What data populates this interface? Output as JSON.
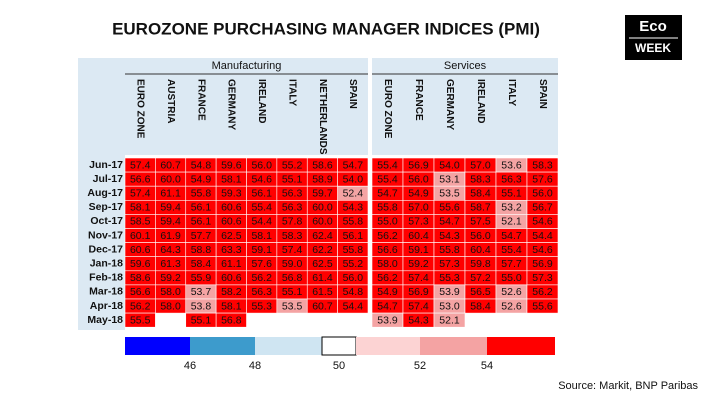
{
  "title": "EUROZONE PURCHASING MANAGER INDICES  (PMI)",
  "logo": [
    "Eco",
    "WEEK"
  ],
  "table": {
    "groups": [
      {
        "name": "Manufacturing",
        "columns": [
          "EURO ZONE",
          "AUSTRIA",
          "FRANCE",
          "GERMANY",
          "IRELAND",
          "ITALY",
          "NETHERLANDS",
          "SPAIN"
        ]
      },
      {
        "name": "Services",
        "columns": [
          "EURO ZONE",
          "FRANCE",
          "GERMANY",
          "IRELAND",
          "ITALY",
          "SPAIN"
        ]
      }
    ],
    "rows": [
      {
        "label": "Jun-17",
        "values": [
          "57.4",
          "60.7",
          "54.8",
          "59.6",
          "56.0",
          "55.2",
          "58.6",
          "54.7",
          "55.4",
          "56.9",
          "54.0",
          "57.0",
          "53.6",
          "58.3"
        ]
      },
      {
        "label": "Jul-17",
        "values": [
          "56.6",
          "60.0",
          "54.9",
          "58.1",
          "54.6",
          "55.1",
          "58.9",
          "54.0",
          "55.4",
          "56.0",
          "53.1",
          "58.3",
          "56.3",
          "57.6"
        ]
      },
      {
        "label": "Aug-17",
        "values": [
          "57.4",
          "61.1",
          "55.8",
          "59.3",
          "56.1",
          "56.3",
          "59.7",
          "52.4",
          "54.7",
          "54.9",
          "53.5",
          "58.4",
          "55.1",
          "56.0"
        ]
      },
      {
        "label": "Sep-17",
        "values": [
          "58.1",
          "59.4",
          "56.1",
          "60.6",
          "55.4",
          "56.3",
          "60.0",
          "54.3",
          "55.8",
          "57.0",
          "55.6",
          "58.7",
          "53.2",
          "56.7"
        ]
      },
      {
        "label": "Oct-17",
        "values": [
          "58.5",
          "59.4",
          "56.1",
          "60.6",
          "54.4",
          "57.8",
          "60.0",
          "55.8",
          "55.0",
          "57.3",
          "54.7",
          "57.5",
          "52.1",
          "54.6"
        ]
      },
      {
        "label": "Nov-17",
        "values": [
          "60.1",
          "61.9",
          "57.7",
          "62.5",
          "58.1",
          "58.3",
          "62.4",
          "56.1",
          "56.2",
          "60.4",
          "54.3",
          "56.0",
          "54.7",
          "54.4"
        ]
      },
      {
        "label": "Dec-17",
        "values": [
          "60.6",
          "64.3",
          "58.8",
          "63.3",
          "59.1",
          "57.4",
          "62.2",
          "55.8",
          "56.6",
          "59.1",
          "55.8",
          "60.4",
          "55.4",
          "54.6"
        ]
      },
      {
        "label": "Jan-18",
        "values": [
          "59.6",
          "61.3",
          "58.4",
          "61.1",
          "57.6",
          "59.0",
          "62.5",
          "55.2",
          "58.0",
          "59.2",
          "57.3",
          "59.8",
          "57.7",
          "56.9"
        ]
      },
      {
        "label": "Feb-18",
        "values": [
          "58.6",
          "59.2",
          "55.9",
          "60.6",
          "56.2",
          "56.8",
          "61.4",
          "56.0",
          "56.2",
          "57.4",
          "55.3",
          "57.2",
          "55.0",
          "57.3"
        ]
      },
      {
        "label": "Mar-18",
        "values": [
          "56.6",
          "58.0",
          "53.7",
          "58.2",
          "56.3",
          "55.1",
          "61.5",
          "54.8",
          "54.9",
          "56.9",
          "53.9",
          "56.5",
          "52.6",
          "56.2"
        ]
      },
      {
        "label": "Apr-18",
        "values": [
          "56.2",
          "58.0",
          "53.8",
          "58.1",
          "55.3",
          "53.5",
          "60.7",
          "54.4",
          "54.7",
          "57.4",
          "53.0",
          "58.4",
          "52.6",
          "55.6"
        ]
      },
      {
        "label": "May-18",
        "values": [
          "55.5",
          null,
          "55.1",
          "56.8",
          null,
          null,
          null,
          null,
          "53.9",
          "54.3",
          "52.1",
          null,
          null,
          null
        ]
      }
    ]
  },
  "legend": {
    "colors": [
      "#0000ff",
      "#3d9bcc",
      "#cfe5f2",
      "#ffffff",
      "#fcd3d3",
      "#f4a3a3",
      "#ff0000"
    ],
    "ticks": [
      46,
      48,
      50,
      52,
      54
    ]
  },
  "source": "Source: Markit, BNP Paribas"
}
